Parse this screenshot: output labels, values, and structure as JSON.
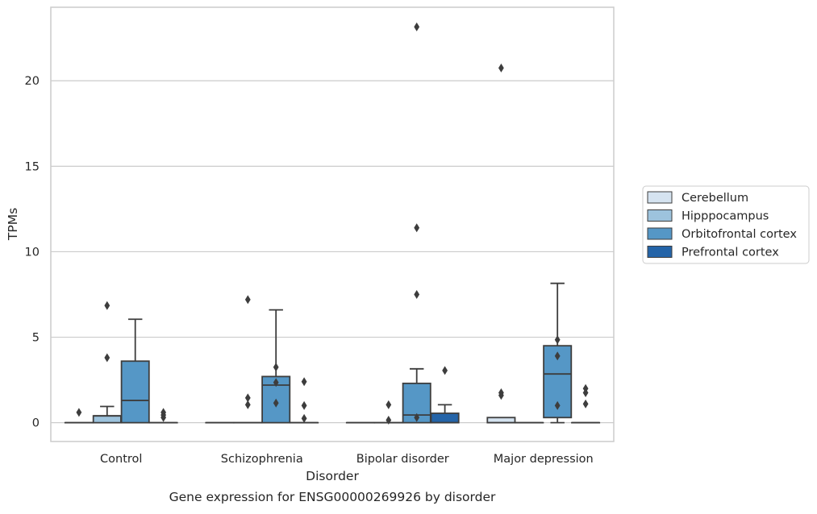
{
  "chart_data": {
    "type": "box",
    "title": "",
    "caption": "Gene expression for ENSG00000269926 by disorder",
    "xlabel": "Disorder",
    "ylabel": "TPMs",
    "ylim": [
      -1.1,
      24.3
    ],
    "yticks": [
      0,
      5,
      10,
      15,
      20
    ],
    "grid": "horizontal",
    "legend_position": "right",
    "categories": [
      "Control",
      "Schizophrenia",
      "Bipolar disorder",
      "Major depression"
    ],
    "series": [
      {
        "name": "Cerebellum",
        "color": "#d5e3f0",
        "boxes": [
          {
            "category": "Control",
            "q1": 0,
            "median": 0,
            "q3": 0,
            "whisker_low": 0,
            "whisker_high": 0,
            "outliers": [
              0.6
            ]
          },
          {
            "category": "Schizophrenia",
            "q1": 0,
            "median": 0,
            "q3": 0,
            "whisker_low": 0,
            "whisker_high": 0,
            "outliers": []
          },
          {
            "category": "Bipolar disorder",
            "q1": 0,
            "median": 0,
            "q3": 0,
            "whisker_low": 0,
            "whisker_high": 0,
            "outliers": []
          },
          {
            "category": "Major depression",
            "q1": 0,
            "median": 0,
            "q3": 0.3,
            "whisker_low": 0,
            "whisker_high": 0.3,
            "outliers": [
              1.6,
              1.75,
              20.75
            ]
          }
        ]
      },
      {
        "name": "Hipppocampus",
        "color": "#9dc3dd",
        "boxes": [
          {
            "category": "Control",
            "q1": 0,
            "median": 0.4,
            "q3": 0.4,
            "whisker_low": 0,
            "whisker_high": 0.95,
            "outliers": [
              3.8,
              6.85
            ]
          },
          {
            "category": "Schizophrenia",
            "q1": 0,
            "median": 0,
            "q3": 0,
            "whisker_low": 0,
            "whisker_high": 0,
            "outliers": [
              1.05,
              1.45,
              7.2
            ]
          },
          {
            "category": "Bipolar disorder",
            "q1": 0,
            "median": 0,
            "q3": 0,
            "whisker_low": 0,
            "whisker_high": 0,
            "outliers": [
              0.15,
              1.05
            ]
          },
          {
            "category": "Major depression",
            "q1": 0,
            "median": 0,
            "q3": 0,
            "whisker_low": 0,
            "whisker_high": 0,
            "outliers": []
          }
        ]
      },
      {
        "name": "Orbitofrontal cortex",
        "color": "#5597c6",
        "boxes": [
          {
            "category": "Control",
            "q1": 0,
            "median": 1.3,
            "q3": 3.6,
            "whisker_low": 0,
            "whisker_high": 6.05,
            "outliers": []
          },
          {
            "category": "Schizophrenia",
            "q1": 0,
            "median": 2.2,
            "q3": 2.7,
            "whisker_low": 0,
            "whisker_high": 6.6,
            "outliers": [
              1.15,
              2.35,
              3.25
            ]
          },
          {
            "category": "Bipolar disorder",
            "q1": 0,
            "median": 0.45,
            "q3": 2.3,
            "whisker_low": 0,
            "whisker_high": 3.15,
            "outliers": [
              0.3,
              7.5,
              11.4,
              23.15
            ]
          },
          {
            "category": "Major depression",
            "q1": 0.3,
            "median": 2.85,
            "q3": 4.5,
            "whisker_low": 0,
            "whisker_high": 8.15,
            "outliers": [
              1.0,
              3.9,
              4.85
            ]
          }
        ]
      },
      {
        "name": "Prefrontal cortex",
        "color": "#2464a8",
        "boxes": [
          {
            "category": "Control",
            "q1": 0,
            "median": 0,
            "q3": 0,
            "whisker_low": 0,
            "whisker_high": 0,
            "outliers": [
              0.3,
              0.45,
              0.6
            ]
          },
          {
            "category": "Schizophrenia",
            "q1": 0,
            "median": 0,
            "q3": 0,
            "whisker_low": 0,
            "whisker_high": 0,
            "outliers": [
              0.25,
              1.0,
              2.4
            ]
          },
          {
            "category": "Bipolar disorder",
            "q1": 0,
            "median": 0,
            "q3": 0.55,
            "whisker_low": 0,
            "whisker_high": 1.05,
            "outliers": [
              3.05
            ]
          },
          {
            "category": "Major depression",
            "q1": 0,
            "median": 0,
            "q3": 0,
            "whisker_low": 0,
            "whisker_high": 0,
            "outliers": [
              1.1,
              1.75,
              2.0
            ]
          }
        ]
      }
    ]
  },
  "colors": {
    "line": "#3d3d3d",
    "grid": "#cccccc",
    "frame": "#cccccc",
    "text": "#262626"
  }
}
